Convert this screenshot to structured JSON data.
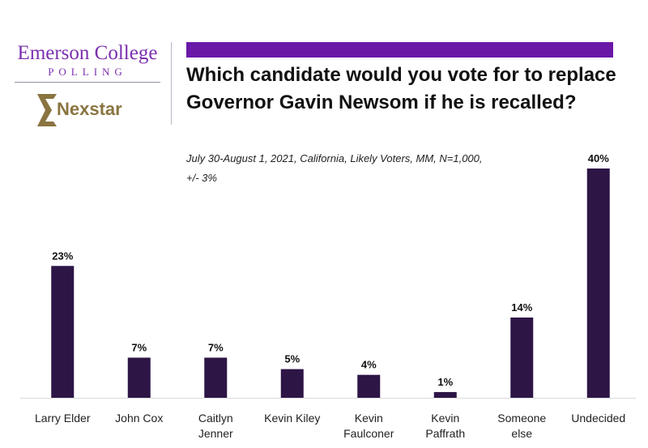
{
  "branding": {
    "emerson": "Emerson College",
    "polling": "POLLING",
    "nexstar": "Nexstar"
  },
  "colors": {
    "bar": "#2d1546",
    "accent_bar": "#6a18a8",
    "logo_purple": "#7b2fae",
    "nexstar_gold": "#8a7440"
  },
  "chart_data": {
    "type": "bar",
    "title": "Which candidate would you vote for to replace Governor Gavin Newsom if he is recalled?",
    "subtitle_line1": "July 30-August 1, 2021, California, Likely Voters, MM,  N=1,000,",
    "subtitle_line2": "+/-  3%",
    "xlabel": "",
    "ylabel": "",
    "categories": [
      [
        "Larry Elder"
      ],
      [
        "John Cox"
      ],
      [
        "Caitlyn",
        "Jenner"
      ],
      [
        "Kevin Kiley"
      ],
      [
        "Kevin",
        "Faulconer"
      ],
      [
        "Kevin",
        "Paffrath"
      ],
      [
        "Someone",
        "else"
      ],
      [
        "Undecided"
      ]
    ],
    "values": [
      23,
      7,
      7,
      5,
      4,
      1,
      14,
      40
    ],
    "value_labels": [
      "23%",
      "7%",
      "7%",
      "5%",
      "4%",
      "1%",
      "14%",
      "40%"
    ],
    "ylim": [
      0,
      40
    ],
    "grid": false,
    "legend": "none"
  }
}
